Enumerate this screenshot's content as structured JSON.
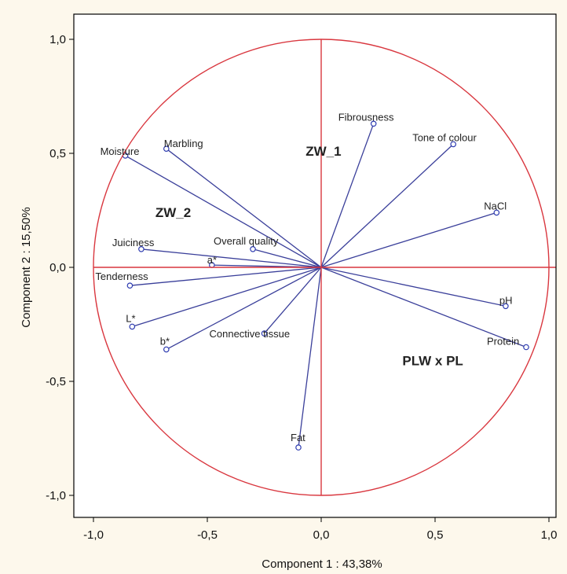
{
  "chart_data": {
    "type": "scatter",
    "subtype": "pca-correlation-circle",
    "xlabel": "Component 1 : 43,38%",
    "ylabel": "Component 2 : 15,50%",
    "xlim": [
      -1.1,
      1.07
    ],
    "ylim": [
      -1.1,
      1.1
    ],
    "x_ticks": [
      -1.0,
      -0.5,
      0.0,
      0.5,
      1.0
    ],
    "x_tick_labels": [
      "-1,0",
      "-0,5",
      "0,0",
      "0,5",
      "1,0"
    ],
    "y_ticks": [
      1.0,
      0.5,
      0.0,
      -0.5,
      -1.0
    ],
    "y_tick_labels": [
      "1,0",
      "0,5",
      "0,0",
      "-0,5",
      "-1,0"
    ],
    "grid": false,
    "unit_circle": true,
    "colors": {
      "circle": "#d9373f",
      "axes": "#d9373f",
      "vectors": "#3a3f9a",
      "marker": "#2d3bb0"
    },
    "points": [
      {
        "label": "Fibrousness",
        "x": 0.23,
        "y": 0.63
      },
      {
        "label": "Tone of colour",
        "x": 0.58,
        "y": 0.54
      },
      {
        "label": "NaCl",
        "x": 0.77,
        "y": 0.24
      },
      {
        "label": "pH",
        "x": 0.81,
        "y": -0.17
      },
      {
        "label": "Protein",
        "x": 0.9,
        "y": -0.35
      },
      {
        "label": "Fat",
        "x": -0.1,
        "y": -0.79
      },
      {
        "label": "Connective tissue",
        "x": -0.25,
        "y": -0.29
      },
      {
        "label": "b*",
        "x": -0.68,
        "y": -0.36
      },
      {
        "label": "L*",
        "x": -0.83,
        "y": -0.26
      },
      {
        "label": "Tenderness",
        "x": -0.84,
        "y": -0.08
      },
      {
        "label": "a*",
        "x": -0.48,
        "y": 0.01
      },
      {
        "label": "Overall quality",
        "x": -0.3,
        "y": 0.08
      },
      {
        "label": "Juiciness",
        "x": -0.79,
        "y": 0.08
      },
      {
        "label": "Moisture",
        "x": -0.86,
        "y": 0.49
      },
      {
        "label": "Marbling",
        "x": -0.68,
        "y": 0.52
      }
    ],
    "group_labels": [
      {
        "label": "ZW_1",
        "x": 0.01,
        "y": 0.49
      },
      {
        "label": "ZW_2",
        "x": -0.65,
        "y": 0.22
      },
      {
        "label": "PLW x PL",
        "x": 0.49,
        "y": -0.43
      }
    ]
  }
}
